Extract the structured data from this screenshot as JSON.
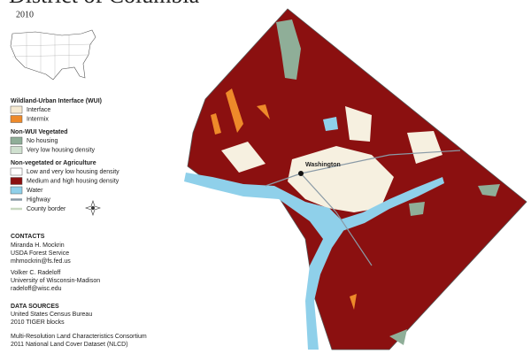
{
  "title": "District of Columbia",
  "year": "2010",
  "legend": {
    "sections": [
      {
        "heading": "Wildland-Urban Interface (WUI)",
        "items": [
          {
            "label": "Interface",
            "color": "#f6ead2"
          },
          {
            "label": "Intermix",
            "color": "#ee8a2a"
          }
        ]
      },
      {
        "heading": "Non-WUI Vegetated",
        "items": [
          {
            "label": "No housing",
            "color": "#8fae98"
          },
          {
            "label": "Very low housing density",
            "color": "#cfe0cf"
          }
        ]
      },
      {
        "heading": "Non-vegetated or Agriculture",
        "items": [
          {
            "label": "Low and very low housing density",
            "color": "#ffffff"
          },
          {
            "label": "Medium and high housing density",
            "color": "#8b1010"
          },
          {
            "label": "Water",
            "color": "#8fd0ea"
          },
          {
            "label": "Highway",
            "color": "#8a9aa6",
            "symbol": "line"
          },
          {
            "label": "County border",
            "color": "#c8d8c0",
            "symbol": "line"
          }
        ]
      }
    ]
  },
  "place_label": "Washington",
  "contacts": {
    "heading": "CONTACTS",
    "people": [
      [
        "Miranda H. Mockrin",
        "USDA Forest Service",
        "mhmockrin@fs.fed.us"
      ],
      [
        "Volker C. Radeloff",
        "University of Wisconsin-Madison",
        "radeloff@wisc.edu"
      ]
    ]
  },
  "data_sources": {
    "heading": "DATA SOURCES",
    "sources": [
      [
        "United States Census Bureau",
        "2010 TIGER blocks"
      ],
      [
        "Multi-Resolution Land Characteristics Consortium",
        "2011 National Land Cover Dataset (NLCD)"
      ]
    ]
  }
}
